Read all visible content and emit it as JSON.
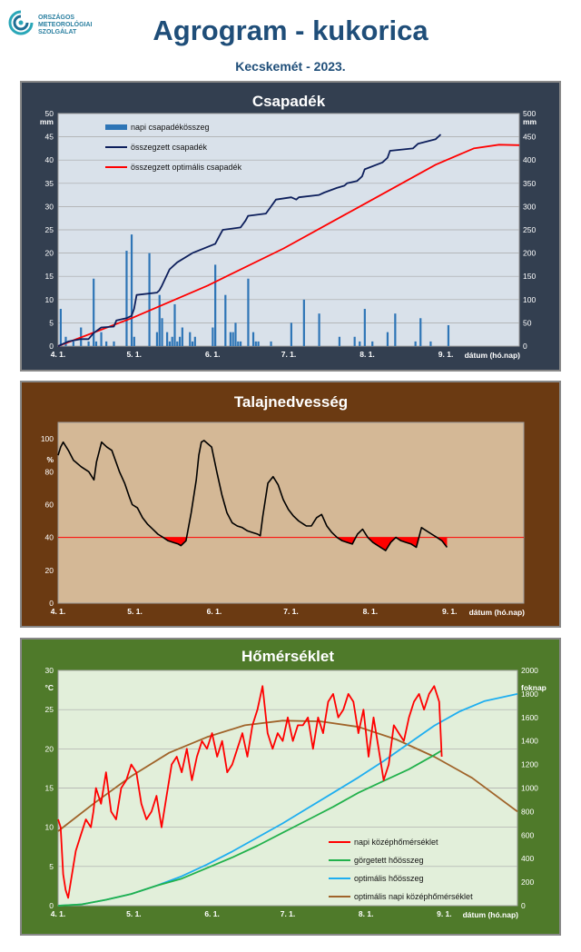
{
  "header": {
    "logo_lines": [
      "ORSZÁGOS",
      "METEOROLÓGIAI",
      "SZOLGÁLAT"
    ],
    "title": "Agrogram - kukorica",
    "subtitle": "Kecskemét - 2023."
  },
  "colors": {
    "panel1_bg": "#333f50",
    "panel1_plot": "#d9e1ea",
    "panel2_bg": "#6b3a12",
    "panel2_plot": "#d4b896",
    "panel3_bg": "#4f7a2a",
    "panel3_plot": "#e2efda",
    "title_blue": "#1f4e79"
  },
  "chart_data": [
    {
      "type": "bar",
      "title": "Csapadék",
      "xlabel": "dátum (hó.nap)",
      "ylabel": "mm",
      "y2label": "mm",
      "x_ticks": [
        "4. 1.",
        "5. 1.",
        "6. 1.",
        "7. 1.",
        "8. 1.",
        "9. 1."
      ],
      "ylim": [
        0,
        50
      ],
      "y2lim": [
        0,
        500
      ],
      "y_ticks": [
        "0",
        "5",
        "10",
        "15",
        "20",
        "25",
        "30",
        "35",
        "40",
        "45",
        "50"
      ],
      "y2_ticks": [
        "0",
        "50",
        "100",
        "150",
        "200",
        "250",
        "300",
        "350",
        "400",
        "450",
        "500"
      ],
      "grid": true,
      "legend_position": "top-left",
      "series": [
        {
          "name": "napi csapadékösszeg",
          "kind": "bar",
          "axis": "left",
          "color": "#2e75b6",
          "days": [
            2,
            4,
            7,
            10,
            13,
            15,
            16,
            18,
            20,
            23,
            28,
            30,
            31,
            37,
            40,
            41,
            42,
            44,
            45,
            46,
            47,
            48,
            49,
            50,
            53,
            54,
            55,
            62,
            63,
            67,
            69,
            70,
            71,
            72,
            73,
            76,
            78,
            79,
            80,
            85,
            93,
            98,
            104,
            112,
            118,
            120,
            122,
            125,
            131,
            134,
            142,
            144,
            148,
            155
          ],
          "values": [
            8,
            2,
            1,
            4,
            1,
            14.5,
            1,
            3,
            1,
            1,
            20.5,
            24,
            2,
            20,
            3,
            11,
            6,
            3,
            1,
            2,
            9,
            1,
            2,
            4,
            3,
            1,
            2,
            4,
            17.5,
            11,
            3,
            3,
            5,
            1,
            1,
            14.5,
            3,
            1,
            1,
            1,
            5,
            10,
            7,
            2,
            2,
            1,
            8,
            1,
            3,
            7,
            1,
            6,
            1,
            4.5
          ]
        },
        {
          "name": "összegzett csapadék",
          "kind": "line",
          "axis": "right",
          "color": "#0d1f5c",
          "x": [
            1,
            3,
            5,
            10,
            13,
            15,
            18,
            23,
            24,
            28,
            30,
            31,
            32,
            40,
            41,
            42,
            45,
            48,
            54,
            63,
            65,
            66,
            73,
            75,
            76,
            83,
            85,
            87,
            93,
            95,
            96,
            104,
            106,
            111,
            114,
            115,
            119,
            121,
            122,
            129,
            131,
            132,
            141,
            143,
            150,
            152
          ],
          "y": [
            0,
            5,
            10,
            15,
            15,
            28,
            40,
            42,
            55,
            60,
            65,
            80,
            110,
            115,
            120,
            130,
            165,
            180,
            200,
            220,
            240,
            250,
            255,
            270,
            280,
            285,
            300,
            315,
            320,
            315,
            320,
            325,
            330,
            340,
            345,
            350,
            355,
            365,
            380,
            395,
            405,
            420,
            425,
            435,
            445,
            455
          ]
        },
        {
          "name": "összegzett optimális  csapadék",
          "kind": "line",
          "axis": "right",
          "color": "#ff0000",
          "x": [
            1,
            30,
            60,
            90,
            120,
            150,
            165,
            175,
            183
          ],
          "y": [
            0,
            60,
            130,
            210,
            300,
            390,
            425,
            433,
            432
          ]
        }
      ]
    },
    {
      "type": "line",
      "title": "Talajnedvesség",
      "xlabel": "dátum (hó.nap)",
      "ylabel": "%",
      "x_ticks": [
        "4. 1.",
        "5. 1.",
        "6. 1.",
        "7. 1.",
        "8. 1.",
        "9. 1."
      ],
      "ylim": [
        0,
        110
      ],
      "y_ticks": [
        "0",
        "20",
        "40",
        "60",
        "80",
        "100"
      ],
      "grid": false,
      "series": [
        {
          "name": "talajnedvesség",
          "color": "#000000",
          "x": [
            1,
            2,
            3,
            5,
            7,
            10,
            13,
            15,
            16,
            18,
            20,
            22,
            25,
            27,
            29,
            30,
            32,
            33,
            34,
            36,
            38,
            40,
            42,
            44,
            46,
            48,
            49,
            51,
            53,
            55,
            56,
            57,
            58,
            61,
            63,
            65,
            67,
            69,
            71,
            73,
            75,
            77,
            79,
            80,
            81,
            83,
            85,
            87,
            89,
            91,
            93,
            95,
            97,
            98,
            100,
            102,
            104,
            106,
            108,
            110,
            112,
            114,
            116,
            118,
            120,
            122,
            124,
            126,
            128,
            129,
            131,
            133,
            135,
            137,
            139,
            141,
            143,
            145,
            147,
            149,
            151,
            153
          ],
          "y": [
            90,
            95,
            98,
            93,
            87,
            83,
            80,
            75,
            86,
            98,
            95,
            93,
            80,
            73,
            64,
            60,
            58,
            55,
            52,
            48,
            45,
            42,
            40,
            38,
            37,
            36,
            35,
            38,
            55,
            75,
            90,
            98,
            99,
            95,
            80,
            66,
            55,
            49,
            47,
            46,
            44,
            43,
            42,
            41,
            53,
            73,
            77,
            72,
            63,
            57,
            53,
            50,
            48,
            47,
            47,
            52,
            54,
            47,
            43,
            40,
            38,
            37,
            36,
            42,
            45,
            40,
            37,
            35,
            33,
            32,
            37,
            40,
            38,
            37,
            36,
            34,
            46,
            44,
            42,
            40,
            38,
            34
          ],
          "reference": 40,
          "reference_color": "#ff0000",
          "deficit_fill": "#ff0000"
        }
      ]
    },
    {
      "type": "line",
      "title": "Hőmérséklet",
      "xlabel": "dátum (hó.nap)",
      "ylabel": "°C",
      "y2label": "foknap",
      "x_ticks": [
        "4. 1.",
        "5. 1.",
        "6. 1.",
        "7. 1.",
        "8. 1.",
        "9. 1."
      ],
      "ylim": [
        0,
        30
      ],
      "y2lim": [
        0,
        2000
      ],
      "y_ticks": [
        "0",
        "5",
        "10",
        "15",
        "20",
        "25",
        "30"
      ],
      "y2_ticks": [
        "0",
        "200",
        "400",
        "600",
        "800",
        "1000",
        "1200",
        "1400",
        "1600",
        "1800",
        "2000"
      ],
      "grid": true,
      "legend_position": "bottom-right",
      "series": [
        {
          "name": "napi középhőmérséklet",
          "axis": "left",
          "color": "#ff0000",
          "x": [
            1,
            2,
            3,
            4,
            5,
            6,
            7,
            8,
            10,
            12,
            14,
            15,
            16,
            18,
            20,
            22,
            24,
            26,
            28,
            30,
            32,
            34,
            36,
            38,
            40,
            42,
            44,
            46,
            48,
            50,
            52,
            54,
            56,
            58,
            60,
            62,
            64,
            66,
            68,
            70,
            72,
            74,
            76,
            78,
            80,
            82,
            84,
            86,
            88,
            90,
            92,
            94,
            96,
            98,
            100,
            102,
            104,
            106,
            108,
            110,
            112,
            114,
            116,
            118,
            120,
            122,
            124,
            126,
            128,
            130,
            132,
            134,
            136,
            138,
            140,
            142,
            144,
            146,
            148,
            150,
            152,
            153
          ],
          "y": [
            11,
            10,
            4,
            2,
            1,
            3,
            5,
            7,
            9,
            11,
            10,
            12,
            15,
            13,
            17,
            12,
            11,
            15,
            16,
            18,
            17,
            13,
            11,
            12,
            14,
            10,
            14,
            18,
            19,
            17,
            20,
            16,
            19,
            21,
            20,
            22,
            19,
            21,
            17,
            18,
            20,
            22,
            19,
            23,
            25,
            28,
            22,
            20,
            22,
            21,
            24,
            21,
            23,
            23,
            24,
            20,
            24,
            22,
            26,
            27,
            24,
            25,
            27,
            26,
            22,
            25,
            19,
            24,
            20,
            16,
            18,
            23,
            22,
            21,
            24,
            26,
            27,
            25,
            27,
            28,
            26,
            19
          ]
        },
        {
          "name": "görgetett hőösszeg",
          "axis": "right",
          "color": "#22b14c",
          "x": [
            1,
            10,
            20,
            30,
            40,
            50,
            60,
            70,
            80,
            90,
            100,
            110,
            120,
            130,
            140,
            150,
            153
          ],
          "y": [
            0,
            10,
            50,
            100,
            170,
            230,
            320,
            410,
            510,
            620,
            730,
            840,
            960,
            1060,
            1160,
            1280,
            1320
          ]
        },
        {
          "name": "optimális hőösszeg",
          "axis": "right",
          "color": "#1eaef0",
          "x": [
            1,
            10,
            20,
            30,
            40,
            50,
            60,
            70,
            80,
            90,
            100,
            110,
            120,
            130,
            140,
            150,
            160,
            170,
            183
          ],
          "y": [
            0,
            10,
            50,
            100,
            170,
            250,
            350,
            460,
            580,
            700,
            830,
            960,
            1090,
            1230,
            1380,
            1530,
            1650,
            1740,
            1800
          ]
        },
        {
          "name": "optimális napi középhőmérséklet",
          "axis": "left",
          "color": "#a0642a",
          "x": [
            1,
            15,
            30,
            45,
            60,
            75,
            90,
            105,
            120,
            135,
            150,
            165,
            183
          ],
          "y": [
            9.5,
            13,
            16.5,
            19.5,
            21.5,
            23,
            23.6,
            23.5,
            22.8,
            21.2,
            19,
            16.3,
            12
          ]
        }
      ]
    }
  ]
}
